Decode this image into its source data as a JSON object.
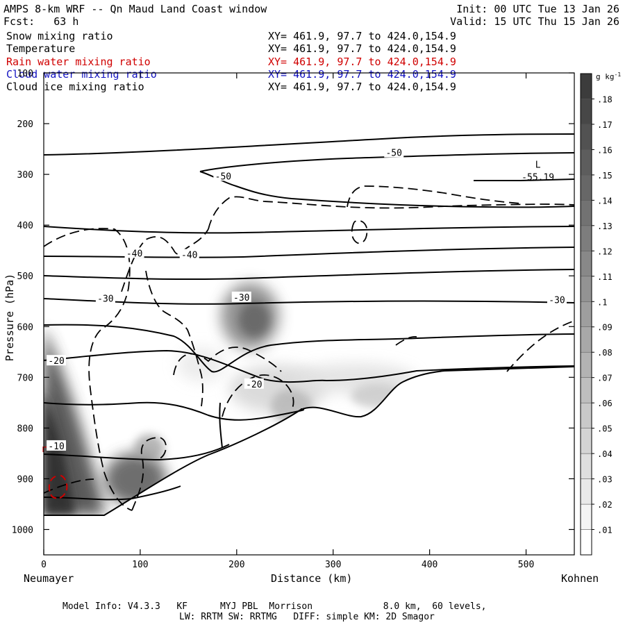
{
  "header": {
    "title": "AMPS 8-km WRF -- Qn Maud Land Coast window",
    "init": "Init: 00 UTC Tue 13 Jan 26",
    "fcst": "Fcst:   63 h",
    "valid": "Valid: 15 UTC Thu 15 Jan 26"
  },
  "fields": [
    {
      "name": "Snow mixing ratio",
      "xy": "XY= 461.9, 97.7 to 424.0,154.9",
      "color": "#000000"
    },
    {
      "name": "Temperature",
      "xy": "XY= 461.9, 97.7 to 424.0,154.9",
      "color": "#000000"
    },
    {
      "name": "Rain water mixing ratio",
      "xy": "XY= 461.9, 97.7 to 424.0,154.9",
      "color": "#d00000"
    },
    {
      "name": "Cloud water mixing ratio",
      "xy": "XY= 461.9, 97.7 to 424.0,154.9",
      "color": "#1010c0"
    },
    {
      "name": "Cloud ice mixing ratio",
      "xy": "XY= 461.9, 97.7 to 424.0,154.9",
      "color": "#000000"
    }
  ],
  "chart_data": {
    "type": "cross-section",
    "xlabel": "Distance (km)",
    "ylabel": "Pressure (hPa)",
    "xlim": [
      0,
      550
    ],
    "ylim": [
      1050,
      100
    ],
    "x_ticks": [
      "0",
      "100",
      "200",
      "300",
      "400",
      "500"
    ],
    "x_tick_values": [
      0,
      100,
      200,
      300,
      400,
      500
    ],
    "y_ticks": [
      "100",
      "200",
      "300",
      "400",
      "500",
      "600",
      "700",
      "800",
      "900",
      "1000"
    ],
    "y_tick_values": [
      100,
      200,
      300,
      400,
      500,
      600,
      700,
      800,
      900,
      1000
    ],
    "left_endpoint": "Neumayer",
    "right_endpoint": "Kohnen",
    "colorbar": {
      "units": "g kg",
      "units_exp": "-1",
      "labels": [
        ".01",
        ".02",
        ".03",
        ".04",
        ".05",
        ".06",
        ".07",
        ".08",
        ".09",
        ".1",
        ".11",
        ".12",
        ".13",
        ".14",
        ".15",
        ".16",
        ".17",
        ".18"
      ]
    },
    "temperature_labels": [
      {
        "text": "-50",
        "km": 363,
        "hpa": 257
      },
      {
        "text": "-50",
        "km": 186,
        "hpa": 303
      },
      {
        "text": "-40",
        "km": 94,
        "hpa": 455
      },
      {
        "text": "-40",
        "km": 151,
        "hpa": 458
      },
      {
        "text": "-30",
        "km": 64,
        "hpa": 544
      },
      {
        "text": "-30",
        "km": 205,
        "hpa": 542
      },
      {
        "text": "-30",
        "km": 532,
        "hpa": 547
      },
      {
        "text": "-20",
        "km": 13,
        "hpa": 667
      },
      {
        "text": "-20",
        "km": 218,
        "hpa": 713
      },
      {
        "text": "-10",
        "km": 13,
        "hpa": 835
      }
    ],
    "low_marker": {
      "letter": "L",
      "value": "-55.19",
      "km": 508,
      "hpa": 298
    }
  },
  "footer": {
    "model_info": "Model Info: V4.3.3   KF      MYJ PBL  Morrison             8.0 km,  60 levels,",
    "physics": "LW: RRTM SW: RRTMG   DIFF: simple KM: 2D Smagor"
  }
}
